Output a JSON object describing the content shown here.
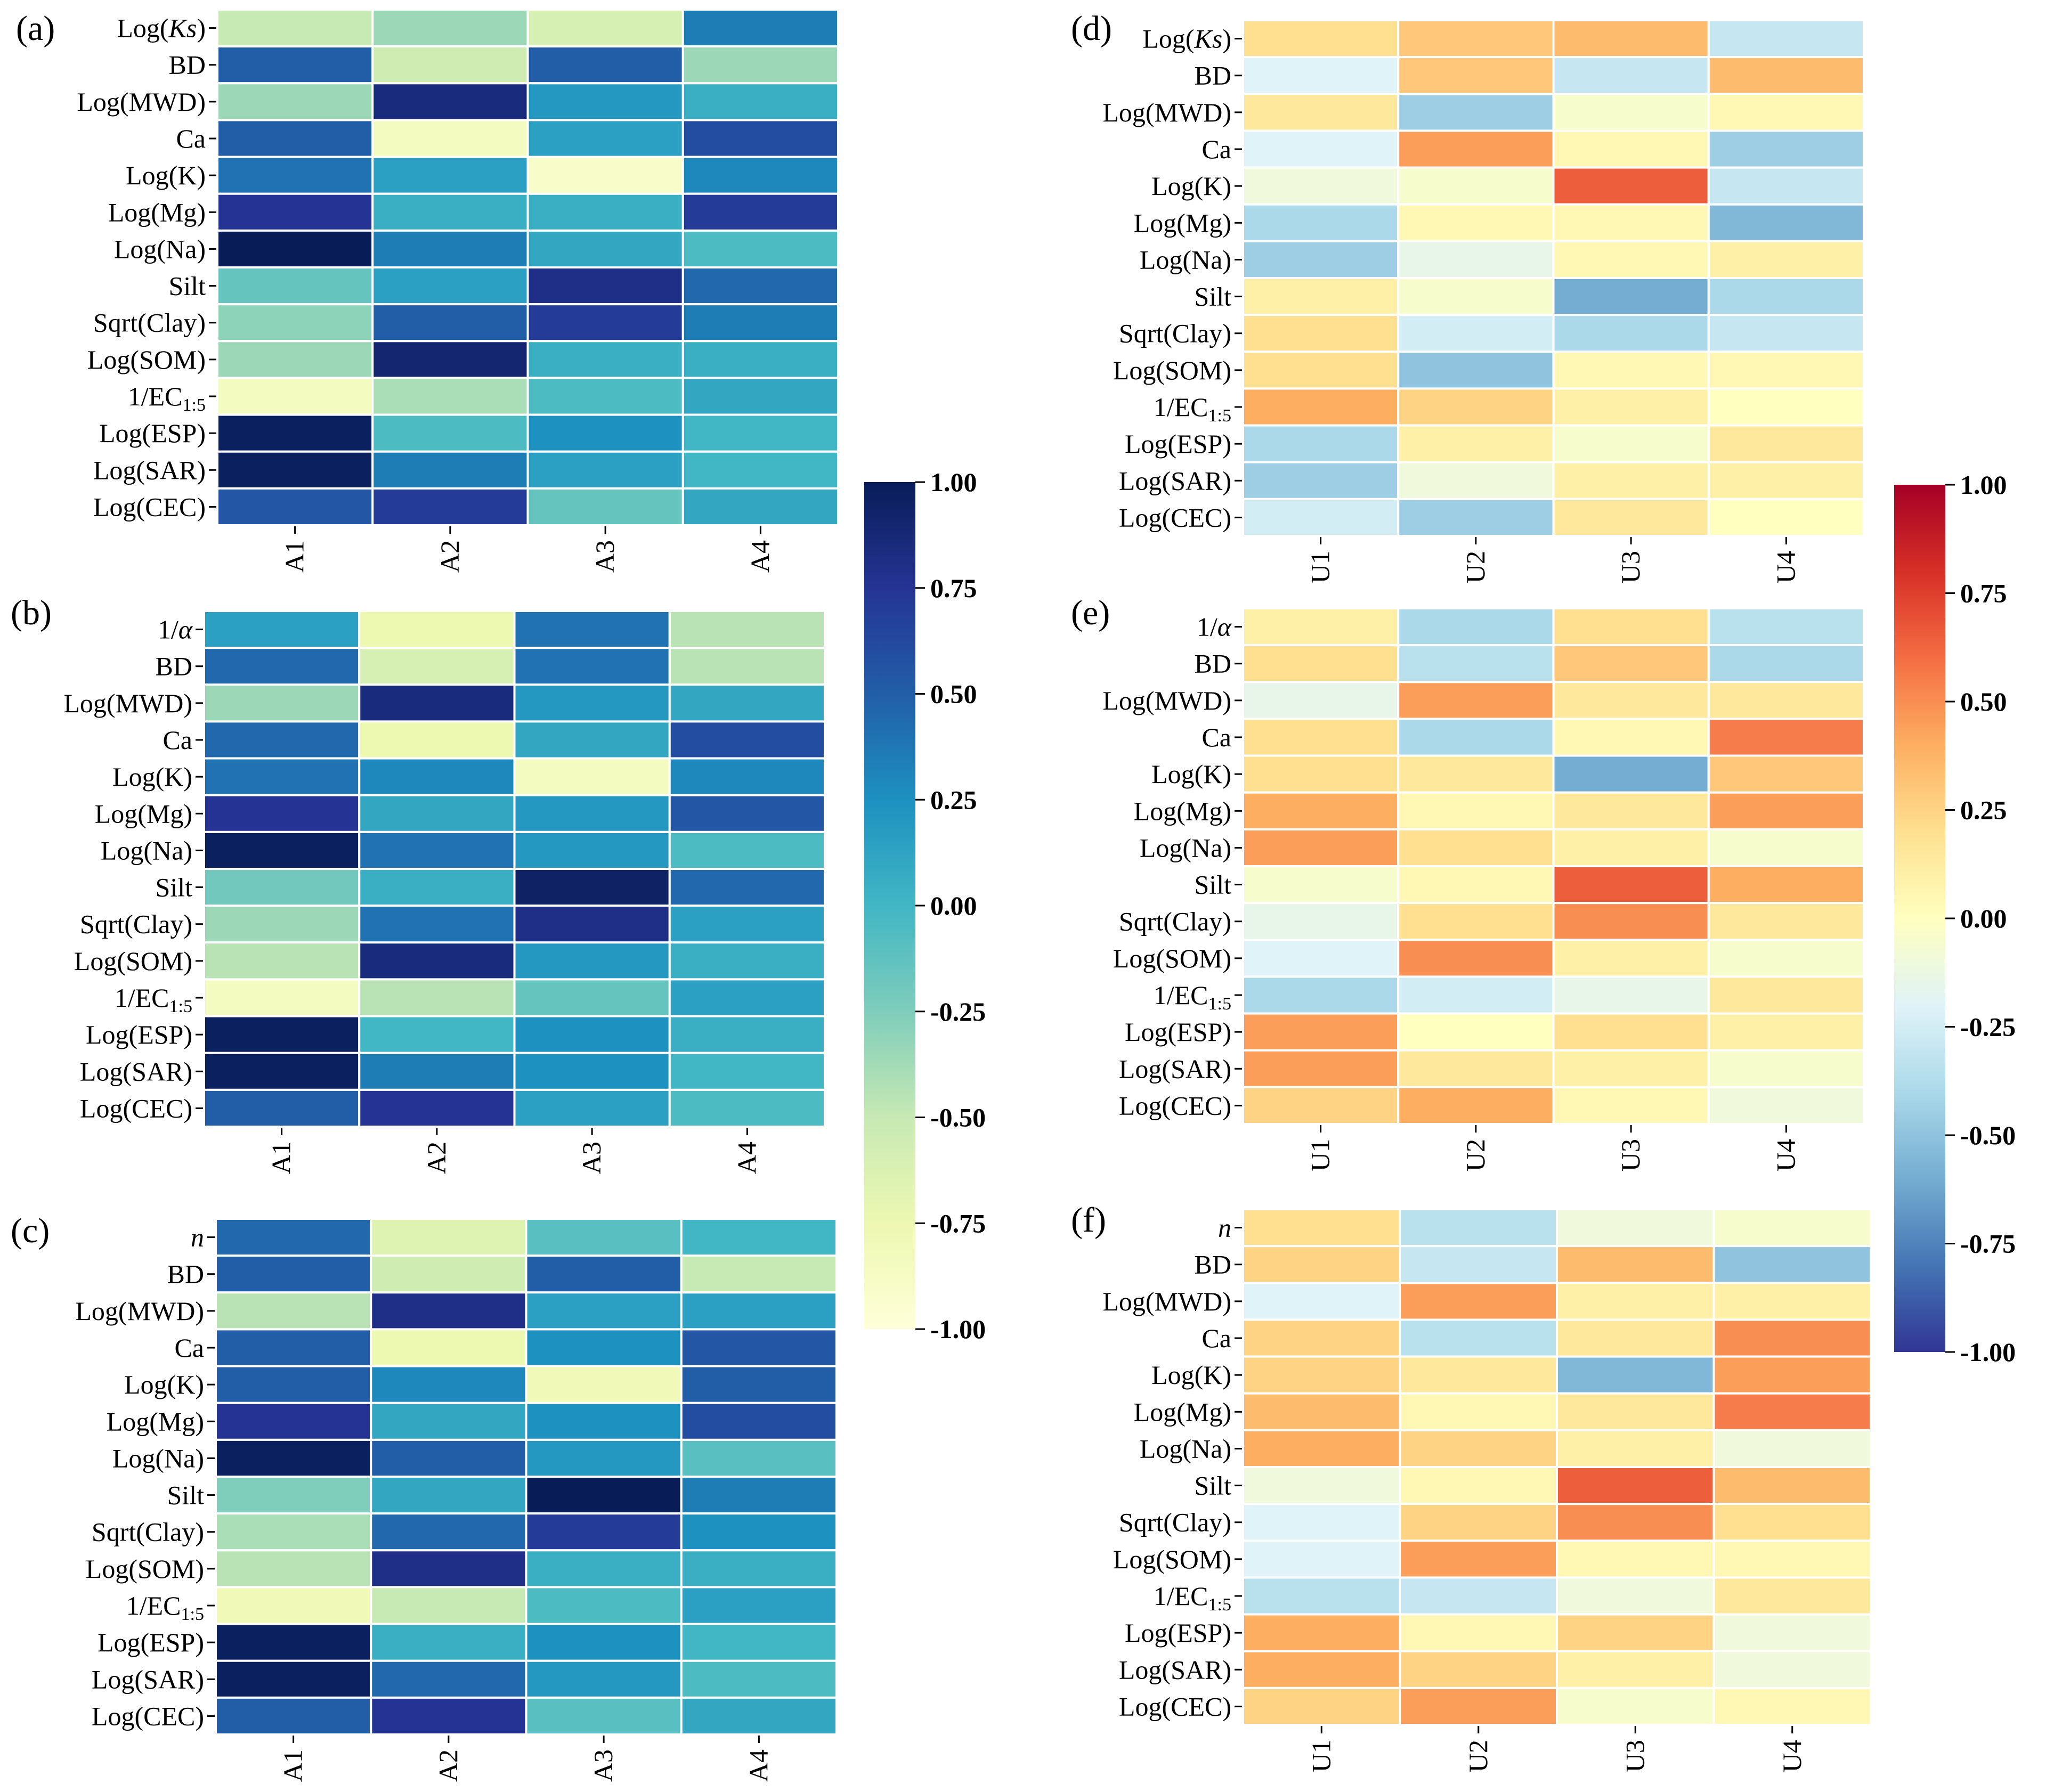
{
  "chart_data": [
    {
      "type": "heatmap",
      "panel": "(a)",
      "colormap": "blue",
      "rows": [
        "Log(Ks)",
        "BD",
        "Log(MWD)",
        "Ca",
        "Log(K)",
        "Log(Mg)",
        "Log(Na)",
        "Silt",
        "Sqrt(Clay)",
        "Log(SOM)",
        "1/EC1:5",
        "Log(ESP)",
        "Log(SAR)",
        "Log(CEC)"
      ],
      "row_labels": [
        {
          "text": "Log(",
          "italic": "Ks",
          "suffix": ")"
        },
        {
          "text": "BD"
        },
        {
          "text": "Log(MWD)"
        },
        {
          "text": "Ca"
        },
        {
          "text": "Log(K)"
        },
        {
          "text": "Log(Mg)"
        },
        {
          "text": "Log(Na)"
        },
        {
          "text": "Silt"
        },
        {
          "text": "Sqrt(Clay)"
        },
        {
          "text": "Log(SOM)"
        },
        {
          "text": "1/EC",
          "sub": "1:5"
        },
        {
          "text": "Log(ESP)"
        },
        {
          "text": "Log(SAR)"
        },
        {
          "text": "Log(CEC)"
        }
      ],
      "columns": [
        "A1",
        "A2",
        "A3",
        "A4"
      ],
      "values": [
        [
          -0.5,
          -0.35,
          -0.6,
          0.35
        ],
        [
          0.5,
          -0.55,
          0.5,
          -0.35
        ],
        [
          -0.35,
          0.85,
          0.2,
          0.05
        ],
        [
          0.5,
          -0.85,
          0.15,
          0.6
        ],
        [
          0.4,
          0.15,
          -0.9,
          0.3
        ],
        [
          0.75,
          0.05,
          0.05,
          0.7
        ],
        [
          1.0,
          0.35,
          0.1,
          -0.05
        ],
        [
          -0.15,
          0.15,
          0.8,
          0.45
        ],
        [
          -0.3,
          0.5,
          0.7,
          0.35
        ],
        [
          -0.35,
          0.9,
          0.05,
          0.05
        ],
        [
          -0.85,
          -0.4,
          -0.05,
          0.1
        ],
        [
          0.97,
          -0.05,
          0.25,
          0.0
        ],
        [
          0.97,
          0.35,
          0.15,
          0.0
        ],
        [
          0.55,
          0.7,
          -0.15,
          0.1
        ]
      ],
      "vmin": -1,
      "vmax": 1
    },
    {
      "type": "heatmap",
      "panel": "(b)",
      "colormap": "blue",
      "rows": [
        "1/α",
        "BD",
        "Log(MWD)",
        "Ca",
        "Log(K)",
        "Log(Mg)",
        "Log(Na)",
        "Silt",
        "Sqrt(Clay)",
        "Log(SOM)",
        "1/EC1:5",
        "Log(ESP)",
        "Log(SAR)",
        "Log(CEC)"
      ],
      "row_labels": [
        {
          "text": "1/",
          "italic": "α"
        },
        {
          "text": "BD"
        },
        {
          "text": "Log(MWD)"
        },
        {
          "text": "Ca"
        },
        {
          "text": "Log(K)"
        },
        {
          "text": "Log(Mg)"
        },
        {
          "text": "Log(Na)"
        },
        {
          "text": "Silt"
        },
        {
          "text": "Sqrt(Clay)"
        },
        {
          "text": "Log(SOM)"
        },
        {
          "text": "1/EC",
          "sub": "1:5"
        },
        {
          "text": "Log(ESP)"
        },
        {
          "text": "Log(SAR)"
        },
        {
          "text": "Log(CEC)"
        }
      ],
      "columns": [
        "A1",
        "A2",
        "A3",
        "A4"
      ],
      "values": [
        [
          0.15,
          -0.75,
          0.4,
          -0.45
        ],
        [
          0.45,
          -0.6,
          0.4,
          -0.45
        ],
        [
          -0.35,
          0.85,
          0.2,
          0.1
        ],
        [
          0.45,
          -0.75,
          0.1,
          0.6
        ],
        [
          0.4,
          0.3,
          -0.85,
          0.3
        ],
        [
          0.75,
          0.1,
          0.2,
          0.55
        ],
        [
          0.97,
          0.4,
          0.2,
          -0.05
        ],
        [
          -0.2,
          0.05,
          0.95,
          0.45
        ],
        [
          -0.35,
          0.4,
          0.8,
          0.15
        ],
        [
          -0.45,
          0.85,
          0.2,
          0.05
        ],
        [
          -0.85,
          -0.45,
          -0.15,
          0.15
        ],
        [
          0.97,
          0.0,
          0.25,
          0.05
        ],
        [
          0.97,
          0.35,
          0.25,
          0.0
        ],
        [
          0.5,
          0.75,
          0.15,
          -0.05
        ]
      ],
      "vmin": -1,
      "vmax": 1
    },
    {
      "type": "heatmap",
      "panel": "(c)",
      "colormap": "blue",
      "rows": [
        "n",
        "BD",
        "Log(MWD)",
        "Ca",
        "Log(K)",
        "Log(Mg)",
        "Log(Na)",
        "Silt",
        "Sqrt(Clay)",
        "Log(SOM)",
        "1/EC1:5",
        "Log(ESP)",
        "Log(SAR)",
        "Log(CEC)"
      ],
      "row_labels": [
        {
          "italic": "n"
        },
        {
          "text": "BD"
        },
        {
          "text": "Log(MWD)"
        },
        {
          "text": "Ca"
        },
        {
          "text": "Log(K)"
        },
        {
          "text": "Log(Mg)"
        },
        {
          "text": "Log(Na)"
        },
        {
          "text": "Silt"
        },
        {
          "text": "Sqrt(Clay)"
        },
        {
          "text": "Log(SOM)"
        },
        {
          "text": "1/EC",
          "sub": "1:5"
        },
        {
          "text": "Log(ESP)"
        },
        {
          "text": "Log(SAR)"
        },
        {
          "text": "Log(CEC)"
        }
      ],
      "columns": [
        "A1",
        "A2",
        "A3",
        "A4"
      ],
      "values": [
        [
          0.45,
          -0.65,
          -0.1,
          0.0
        ],
        [
          0.5,
          -0.55,
          0.5,
          -0.5
        ],
        [
          -0.45,
          0.8,
          0.15,
          0.15
        ],
        [
          0.5,
          -0.75,
          0.25,
          0.55
        ],
        [
          0.5,
          0.3,
          -0.8,
          0.5
        ],
        [
          0.75,
          0.1,
          0.25,
          0.6
        ],
        [
          0.97,
          0.5,
          0.2,
          -0.1
        ],
        [
          -0.25,
          0.1,
          1.0,
          0.35
        ],
        [
          -0.4,
          0.45,
          0.7,
          0.25
        ],
        [
          -0.45,
          0.8,
          0.05,
          0.05
        ],
        [
          -0.8,
          -0.5,
          -0.05,
          0.15
        ],
        [
          0.97,
          0.05,
          0.25,
          0.0
        ],
        [
          0.97,
          0.45,
          0.2,
          -0.05
        ],
        [
          0.5,
          0.75,
          -0.1,
          0.1
        ]
      ],
      "vmin": -1,
      "vmax": 1
    },
    {
      "type": "heatmap",
      "panel": "(d)",
      "colormap": "red-blue",
      "rows": [
        "Log(Ks)",
        "BD",
        "Log(MWD)",
        "Ca",
        "Log(K)",
        "Log(Mg)",
        "Log(Na)",
        "Silt",
        "Sqrt(Clay)",
        "Log(SOM)",
        "1/EC1:5",
        "Log(ESP)",
        "Log(SAR)",
        "Log(CEC)"
      ],
      "row_labels": [
        {
          "text": "Log(",
          "italic": "Ks",
          "suffix": ")"
        },
        {
          "text": "BD"
        },
        {
          "text": "Log(MWD)"
        },
        {
          "text": "Ca"
        },
        {
          "text": "Log(K)"
        },
        {
          "text": "Log(Mg)"
        },
        {
          "text": "Log(Na)"
        },
        {
          "text": "Silt"
        },
        {
          "text": "Sqrt(Clay)"
        },
        {
          "text": "Log(SOM)"
        },
        {
          "text": "1/EC",
          "sub": "1:5"
        },
        {
          "text": "Log(ESP)"
        },
        {
          "text": "Log(SAR)"
        },
        {
          "text": "Log(CEC)"
        }
      ],
      "columns": [
        "U1",
        "U2",
        "U3",
        "U4"
      ],
      "values": [
        [
          0.2,
          0.3,
          0.35,
          -0.3
        ],
        [
          -0.2,
          0.3,
          -0.3,
          0.35
        ],
        [
          0.15,
          -0.45,
          -0.05,
          0.05
        ],
        [
          -0.2,
          0.45,
          0.05,
          -0.45
        ],
        [
          -0.1,
          -0.05,
          0.65,
          -0.3
        ],
        [
          -0.4,
          0.05,
          0.05,
          -0.55
        ],
        [
          -0.45,
          -0.15,
          0.05,
          0.1
        ],
        [
          0.1,
          -0.05,
          -0.6,
          -0.4
        ],
        [
          0.2,
          -0.25,
          -0.4,
          -0.3
        ],
        [
          0.2,
          -0.5,
          0.05,
          0.05
        ],
        [
          0.4,
          0.25,
          0.1,
          0.0
        ],
        [
          -0.4,
          0.1,
          -0.05,
          0.15
        ],
        [
          -0.45,
          -0.1,
          0.1,
          0.1
        ],
        [
          -0.25,
          -0.45,
          0.15,
          0.0
        ]
      ],
      "vmin": -1,
      "vmax": 1
    },
    {
      "type": "heatmap",
      "panel": "(e)",
      "colormap": "red-blue",
      "rows": [
        "1/α",
        "BD",
        "Log(MWD)",
        "Ca",
        "Log(K)",
        "Log(Mg)",
        "Log(Na)",
        "Silt",
        "Sqrt(Clay)",
        "Log(SOM)",
        "1/EC1:5",
        "Log(ESP)",
        "Log(SAR)",
        "Log(CEC)"
      ],
      "row_labels": [
        {
          "text": "1/",
          "italic": "α"
        },
        {
          "text": "BD"
        },
        {
          "text": "Log(MWD)"
        },
        {
          "text": "Ca"
        },
        {
          "text": "Log(K)"
        },
        {
          "text": "Log(Mg)"
        },
        {
          "text": "Log(Na)"
        },
        {
          "text": "Silt"
        },
        {
          "text": "Sqrt(Clay)"
        },
        {
          "text": "Log(SOM)"
        },
        {
          "text": "1/EC",
          "sub": "1:5"
        },
        {
          "text": "Log(ESP)"
        },
        {
          "text": "Log(SAR)"
        },
        {
          "text": "Log(CEC)"
        }
      ],
      "columns": [
        "U1",
        "U2",
        "U3",
        "U4"
      ],
      "values": [
        [
          0.1,
          -0.4,
          0.2,
          -0.35
        ],
        [
          0.2,
          -0.35,
          0.3,
          -0.4
        ],
        [
          -0.15,
          0.45,
          0.15,
          0.15
        ],
        [
          0.2,
          -0.4,
          0.05,
          0.55
        ],
        [
          0.2,
          0.15,
          -0.6,
          0.3
        ],
        [
          0.4,
          0.05,
          0.15,
          0.45
        ],
        [
          0.45,
          0.2,
          0.1,
          -0.05
        ],
        [
          -0.05,
          0.05,
          0.65,
          0.4
        ],
        [
          -0.15,
          0.2,
          0.5,
          0.15
        ],
        [
          -0.2,
          0.5,
          0.1,
          -0.05
        ],
        [
          -0.4,
          -0.25,
          -0.15,
          0.15
        ],
        [
          0.45,
          0.0,
          0.2,
          0.1
        ],
        [
          0.45,
          0.15,
          0.1,
          -0.05
        ],
        [
          0.25,
          0.4,
          0.05,
          -0.1
        ]
      ],
      "vmin": -1,
      "vmax": 1
    },
    {
      "type": "heatmap",
      "panel": "(f)",
      "colormap": "red-blue",
      "rows": [
        "n",
        "BD",
        "Log(MWD)",
        "Ca",
        "Log(K)",
        "Log(Mg)",
        "Log(Na)",
        "Silt",
        "Sqrt(Clay)",
        "Log(SOM)",
        "1/EC1:5",
        "Log(ESP)",
        "Log(SAR)",
        "Log(CEC)"
      ],
      "row_labels": [
        {
          "italic": "n"
        },
        {
          "text": "BD"
        },
        {
          "text": "Log(MWD)"
        },
        {
          "text": "Ca"
        },
        {
          "text": "Log(K)"
        },
        {
          "text": "Log(Mg)"
        },
        {
          "text": "Log(Na)"
        },
        {
          "text": "Silt"
        },
        {
          "text": "Sqrt(Clay)"
        },
        {
          "text": "Log(SOM)"
        },
        {
          "text": "1/EC",
          "sub": "1:5"
        },
        {
          "text": "Log(ESP)"
        },
        {
          "text": "Log(SAR)"
        },
        {
          "text": "Log(CEC)"
        }
      ],
      "columns": [
        "U1",
        "U2",
        "U3",
        "U4"
      ],
      "values": [
        [
          0.2,
          -0.35,
          -0.1,
          -0.05
        ],
        [
          0.25,
          -0.3,
          0.35,
          -0.5
        ],
        [
          -0.2,
          0.45,
          0.1,
          0.1
        ],
        [
          0.25,
          -0.35,
          0.15,
          0.5
        ],
        [
          0.25,
          0.15,
          -0.55,
          0.45
        ],
        [
          0.35,
          0.05,
          0.15,
          0.55
        ],
        [
          0.4,
          0.25,
          0.1,
          -0.1
        ],
        [
          -0.1,
          0.05,
          0.65,
          0.35
        ],
        [
          -0.2,
          0.25,
          0.5,
          0.2
        ],
        [
          -0.2,
          0.45,
          0.05,
          0.05
        ],
        [
          -0.35,
          -0.3,
          -0.1,
          0.15
        ],
        [
          0.4,
          0.05,
          0.25,
          -0.1
        ],
        [
          0.4,
          0.25,
          0.1,
          -0.1
        ],
        [
          0.25,
          0.45,
          -0.05,
          0.05
        ]
      ],
      "vmin": -1,
      "vmax": 1
    }
  ],
  "colorbars": [
    {
      "name": "blue",
      "ticks": [
        "1.00",
        "0.75",
        "0.50",
        "0.25",
        "0.00",
        "-0.25",
        "-0.50",
        "-0.75",
        "-1.00"
      ],
      "stops": [
        "#081d58",
        "#253494",
        "#225ea8",
        "#1d91c0",
        "#41b6c4",
        "#7fcdbb",
        "#c7e9b4",
        "#edf8b1",
        "#ffffd9"
      ]
    },
    {
      "name": "red-blue",
      "ticks": [
        "1.00",
        "0.75",
        "0.50",
        "0.25",
        "0.00",
        "-0.25",
        "-0.50",
        "-0.75",
        "-1.00"
      ],
      "stops": [
        "#a50026",
        "#d73027",
        "#f46d43",
        "#fdae61",
        "#fee090",
        "#ffffbf",
        "#e0f3f8",
        "#abd9e9",
        "#74add1",
        "#4575b4",
        "#313695"
      ]
    }
  ]
}
